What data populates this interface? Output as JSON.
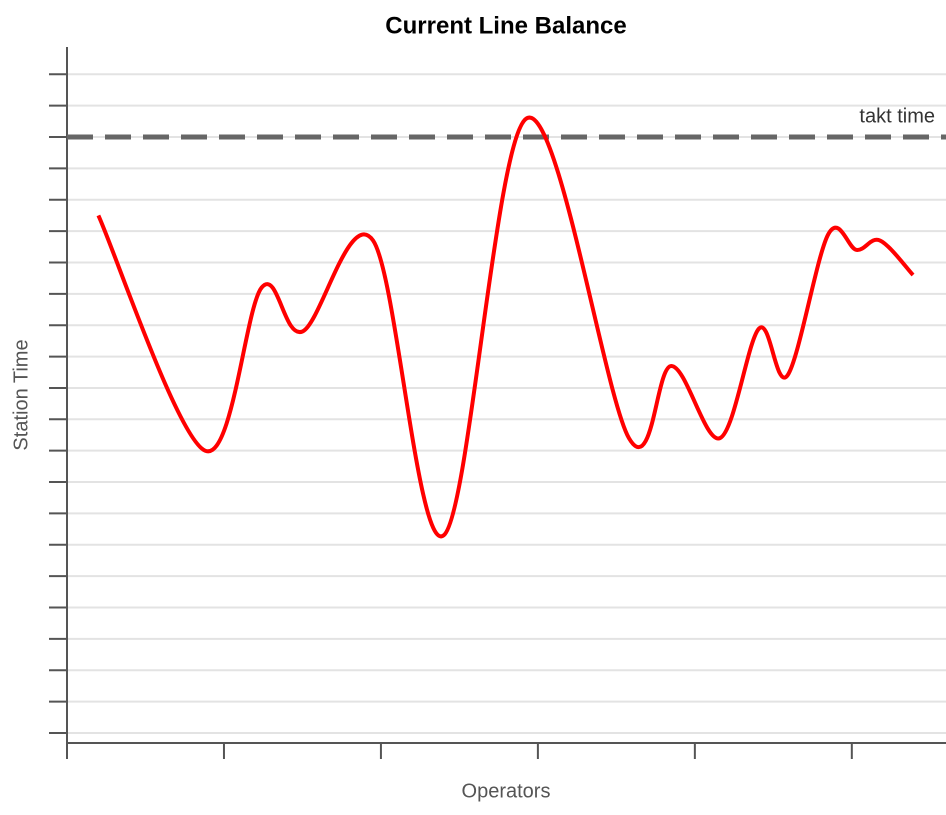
{
  "chart_data": {
    "type": "line",
    "title": "Current Line Balance",
    "xlabel": "Operators",
    "ylabel": "Station Time",
    "x": [
      0.2,
      0.88,
      1.24,
      1.5,
      1.95,
      2.4,
      2.93,
      3.58,
      3.85,
      4.16,
      4.41,
      4.59,
      4.85,
      5.03,
      5.18,
      5.39
    ],
    "series": [
      {
        "color": "#ff0000",
        "values": [
          17.5,
          10.0,
          15.2,
          13.8,
          16.7,
          7.3,
          20.6,
          10.4,
          12.7,
          10.4,
          13.9,
          12.4,
          16.9,
          16.4,
          16.7,
          15.6
        ]
      }
    ],
    "xlim": [
      0,
      5.6
    ],
    "xticks": [
      0,
      1,
      2,
      3,
      4,
      5
    ],
    "ylim": [
      0.68,
      22.87
    ],
    "yticks": [
      1,
      2,
      3,
      4,
      5,
      6,
      7,
      8,
      9,
      10,
      11,
      12,
      13,
      14,
      15,
      16,
      17,
      18,
      19,
      20,
      21,
      22
    ],
    "grid": true,
    "reference_line": {
      "label": "takt time",
      "value": 20,
      "color": "#666666"
    }
  }
}
